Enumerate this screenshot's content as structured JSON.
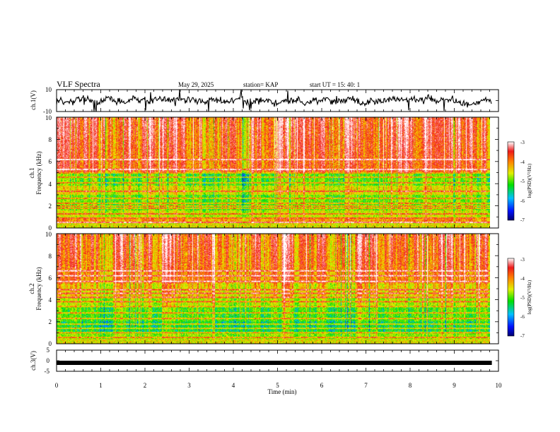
{
  "header": {
    "title": "VLF Spectra",
    "date": "May 29, 2025",
    "station": "station= KAP",
    "start": "start  UT  =   15: 40: 1"
  },
  "colors": {
    "low": "#001a8c",
    "mid": "#00d800",
    "high": "#ee2a1a",
    "peak": "#ffffff",
    "trace": "#000000"
  },
  "chart_data": [
    {
      "type": "line",
      "panel": "ch1-waveform",
      "ylabel": "ch.1(V)",
      "ylim": [
        -10,
        10
      ],
      "yticks": [
        "10",
        "-10"
      ],
      "xlim": [
        0,
        10
      ]
    },
    {
      "type": "heatmap",
      "panel": "ch1-spectrogram",
      "ylabel_line1": "ch.1",
      "ylabel_line2": "Frequency (kHz)",
      "ylim": [
        0,
        10
      ],
      "yticks": [
        "0",
        "2",
        "4",
        "6",
        "8",
        "10"
      ],
      "xlim": [
        0,
        9.85
      ],
      "colorbar": {
        "label": "log(PSD)(V²/Hz)",
        "range": [
          -7,
          -3
        ],
        "ticks": [
          "-3",
          "-4",
          "-5",
          "-6",
          "-7"
        ]
      }
    },
    {
      "type": "heatmap",
      "panel": "ch2-spectrogram",
      "ylabel_line1": "ch.2",
      "ylabel_line2": "Frequency (kHz)",
      "ylim": [
        0,
        10
      ],
      "yticks": [
        "0",
        "2",
        "4",
        "6",
        "8",
        "10"
      ],
      "xlim": [
        0,
        9.85
      ],
      "colorbar": {
        "label": "log(PSD)(V²/Hz)",
        "range": [
          -7,
          -3
        ],
        "ticks": [
          "-3",
          "-4",
          "-5",
          "-6",
          "-7"
        ]
      }
    },
    {
      "type": "line",
      "panel": "ch3-waveform",
      "ylabel": "ch.3(V)",
      "ylim": [
        -5,
        5
      ],
      "yticks": [
        "5",
        "0",
        "-5"
      ],
      "level": -1,
      "xlim": [
        0,
        10
      ]
    }
  ],
  "xaxis": {
    "label": "Time  (min)",
    "range": [
      0,
      10
    ],
    "ticks": [
      "0",
      "1",
      "2",
      "3",
      "4",
      "5",
      "6",
      "7",
      "8",
      "9",
      "10"
    ]
  }
}
